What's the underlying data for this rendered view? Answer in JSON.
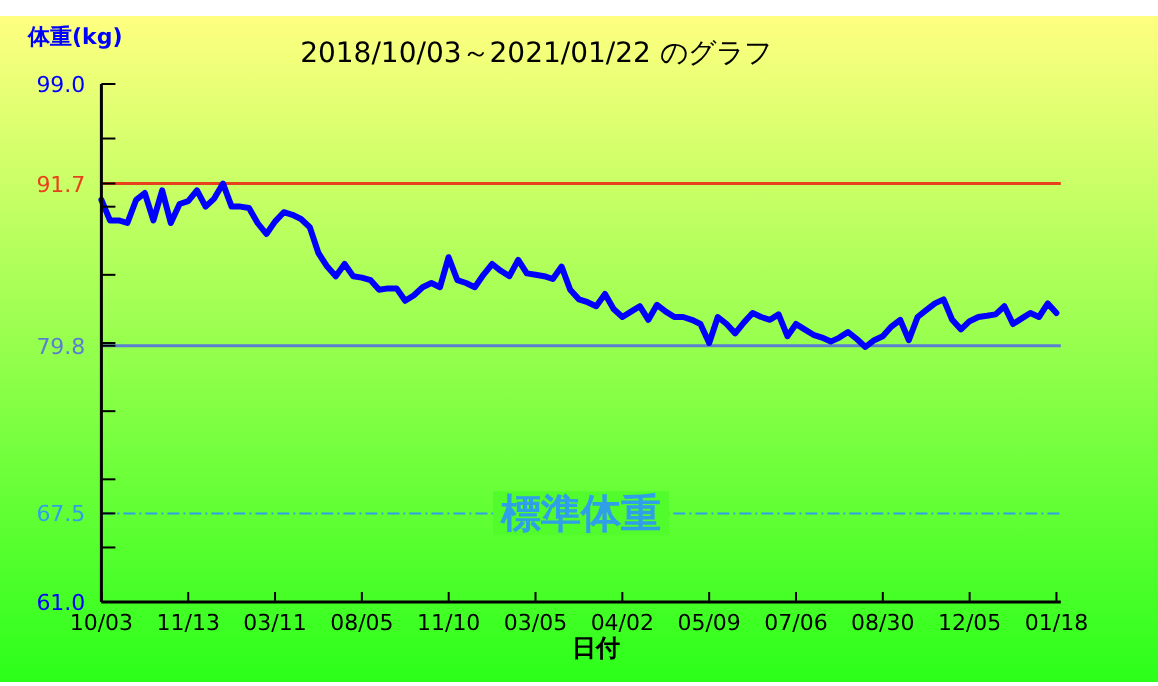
{
  "chart_data": {
    "type": "line",
    "title": "2018/10/03～2021/01/22 のグラフ",
    "ylabel": "体重(kg)",
    "xlabel": "日付",
    "categories": [
      "10/03",
      null,
      null,
      null,
      null,
      null,
      null,
      null,
      null,
      null,
      "11/13",
      null,
      null,
      null,
      null,
      null,
      null,
      null,
      null,
      null,
      "03/11",
      null,
      null,
      null,
      null,
      null,
      null,
      null,
      null,
      null,
      "08/05",
      null,
      null,
      null,
      null,
      null,
      null,
      null,
      null,
      null,
      "11/10",
      null,
      null,
      null,
      null,
      null,
      null,
      null,
      null,
      null,
      "03/05",
      null,
      null,
      null,
      null,
      null,
      null,
      null,
      null,
      null,
      "04/02",
      null,
      null,
      null,
      null,
      null,
      null,
      null,
      null,
      null,
      "05/09",
      null,
      null,
      null,
      null,
      null,
      null,
      null,
      null,
      null,
      "07/06",
      null,
      null,
      null,
      null,
      null,
      null,
      null,
      null,
      null,
      "08/30",
      null,
      null,
      null,
      null,
      null,
      null,
      null,
      null,
      null,
      "12/05",
      null,
      null,
      null,
      null,
      null,
      null,
      null,
      null,
      null,
      "01/18"
    ],
    "ylim": [
      61,
      99
    ],
    "yticks": [
      {
        "value": 61,
        "label": "61.0"
      },
      {
        "value": 65,
        "label": null
      },
      {
        "value": 67.5,
        "label": "67.5"
      },
      {
        "value": 70,
        "label": null
      },
      {
        "value": 75,
        "label": null
      },
      {
        "value": 79.8,
        "label": "79.8"
      },
      {
        "value": 80,
        "label": null
      },
      {
        "value": 85,
        "label": null
      },
      {
        "value": 90,
        "label": null
      },
      {
        "value": 91.7,
        "label": "91.7"
      },
      {
        "value": 95,
        "label": null
      },
      {
        "value": 99,
        "label": "99.0"
      }
    ],
    "grid": false,
    "line_style": "solid",
    "ref_lines": [
      {
        "axis": "y",
        "value": 91.7,
        "color": "#e8401c",
        "line_style": "solid"
      },
      {
        "axis": "y",
        "value": 79.8,
        "color": "#5b7fd0",
        "line_style": "solid"
      },
      {
        "axis": "y",
        "value": 67.5,
        "label": "標準体重",
        "color": "#2fa0e8",
        "line_style": "dashdot"
      }
    ],
    "series": [
      {
        "color": "#0000ff",
        "values": [
          90.5,
          89.0,
          89.0,
          88.8,
          90.5,
          91.0,
          89.0,
          91.2,
          88.8,
          90.2,
          90.4,
          91.2,
          90.0,
          90.6,
          91.7,
          90.0,
          90.0,
          89.9,
          88.8,
          88.0,
          88.9,
          89.6,
          89.4,
          89.1,
          88.5,
          86.6,
          85.6,
          84.9,
          85.8,
          84.9,
          84.8,
          84.6,
          83.9,
          84.0,
          84.0,
          83.1,
          83.5,
          84.1,
          84.4,
          84.1,
          86.3,
          84.6,
          84.4,
          84.1,
          85.0,
          85.8,
          85.3,
          84.9,
          86.1,
          85.1,
          85.0,
          84.9,
          84.7,
          85.6,
          83.9,
          83.2,
          83.0,
          82.7,
          83.6,
          82.5,
          81.9,
          82.3,
          82.7,
          81.7,
          82.8,
          82.3,
          81.9,
          81.9,
          81.7,
          81.4,
          80.0,
          81.9,
          81.4,
          80.7,
          81.5,
          82.2,
          81.9,
          81.7,
          82.1,
          80.5,
          81.4,
          81.0,
          80.6,
          80.4,
          80.1,
          80.4,
          80.8,
          80.3,
          79.7,
          80.2,
          80.5,
          81.2,
          81.7,
          80.2,
          81.9,
          82.4,
          82.9,
          83.2,
          81.7,
          81.0,
          81.6,
          81.9,
          82.0,
          82.1,
          82.7,
          81.4,
          81.8,
          82.2,
          81.9,
          82.9,
          82.2
        ]
      }
    ]
  }
}
